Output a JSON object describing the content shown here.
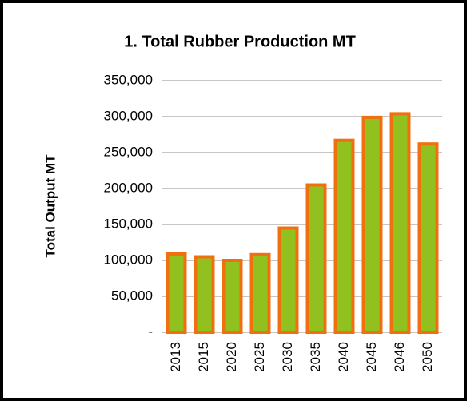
{
  "chart_data": {
    "type": "bar",
    "title": "1. Total Rubber Production MT",
    "y_label": "Total Output MT",
    "categories": [
      "2013",
      "2015",
      "2020",
      "2025",
      "2030",
      "2035",
      "2040",
      "2045",
      "2046",
      "2050"
    ],
    "values": [
      109000,
      105000,
      100000,
      108000,
      145000,
      205000,
      267000,
      299000,
      304000,
      262000
    ],
    "color": "#92c01f",
    "edge_color": "#f07010",
    "ylim": [
      0,
      350000
    ],
    "yticks": [
      {
        "value": 0,
        "label": "-"
      },
      {
        "value": 50000,
        "label": "50,000"
      },
      {
        "value": 100000,
        "label": "100,000"
      },
      {
        "value": 150000,
        "label": "150,000"
      },
      {
        "value": 200000,
        "label": "200,000"
      },
      {
        "value": 250000,
        "label": "250,000"
      },
      {
        "value": 300000,
        "label": "300,000"
      },
      {
        "value": 350000,
        "label": "350,000"
      }
    ],
    "grid": true
  }
}
